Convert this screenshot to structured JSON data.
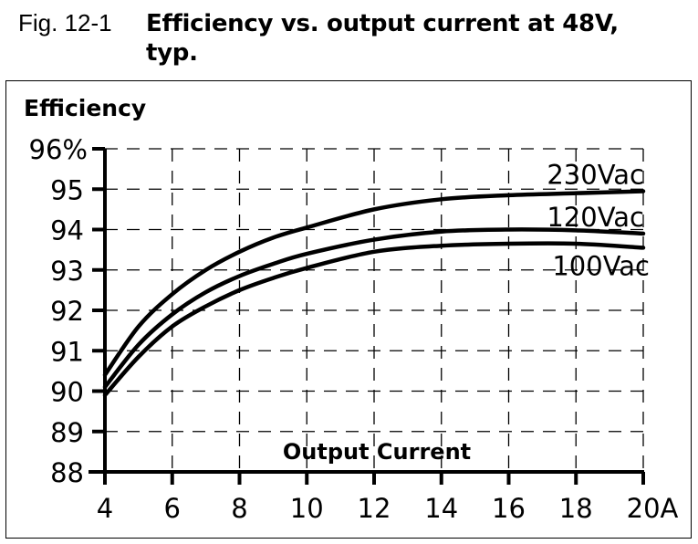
{
  "figure": {
    "label": "Fig. 12-1",
    "title": "Efficiency vs. output current at 48V, typ."
  },
  "chart_data": {
    "type": "line",
    "title": "Efficiency vs. output current at 48V, typ.",
    "xlabel": "Output Current",
    "ylabel": "Efficiency",
    "x_unit": "A",
    "y_unit": "%",
    "xlim": [
      4,
      20
    ],
    "ylim": [
      88,
      96
    ],
    "x_ticks": [
      4,
      6,
      8,
      10,
      12,
      14,
      16,
      18,
      20
    ],
    "x_tick_labels": [
      "4",
      "6",
      "8",
      "10",
      "12",
      "14",
      "16",
      "18",
      "20A"
    ],
    "y_ticks": [
      88,
      89,
      90,
      91,
      92,
      93,
      94,
      95,
      96
    ],
    "y_tick_labels": [
      "88",
      "89",
      "90",
      "91",
      "92",
      "93",
      "94",
      "95",
      "96%"
    ],
    "grid": true,
    "grid_style": "dashed",
    "legend_position": "inline-right",
    "x": [
      4,
      5,
      6,
      7,
      8,
      9,
      10,
      12,
      14,
      16,
      18,
      20
    ],
    "series": [
      {
        "name": "230Vac",
        "values": [
          90.4,
          91.6,
          92.4,
          93.0,
          93.45,
          93.8,
          94.05,
          94.5,
          94.75,
          94.85,
          94.9,
          94.95
        ]
      },
      {
        "name": "120Vac",
        "values": [
          90.1,
          91.15,
          91.9,
          92.45,
          92.85,
          93.15,
          93.4,
          93.75,
          93.95,
          94.0,
          93.98,
          93.9
        ]
      },
      {
        "name": "100Vac",
        "values": [
          89.9,
          90.85,
          91.6,
          92.1,
          92.5,
          92.8,
          93.05,
          93.45,
          93.6,
          93.65,
          93.65,
          93.55
        ]
      }
    ]
  },
  "colors": {
    "line": "#000000",
    "grid": "#000000",
    "background": "#ffffff"
  }
}
